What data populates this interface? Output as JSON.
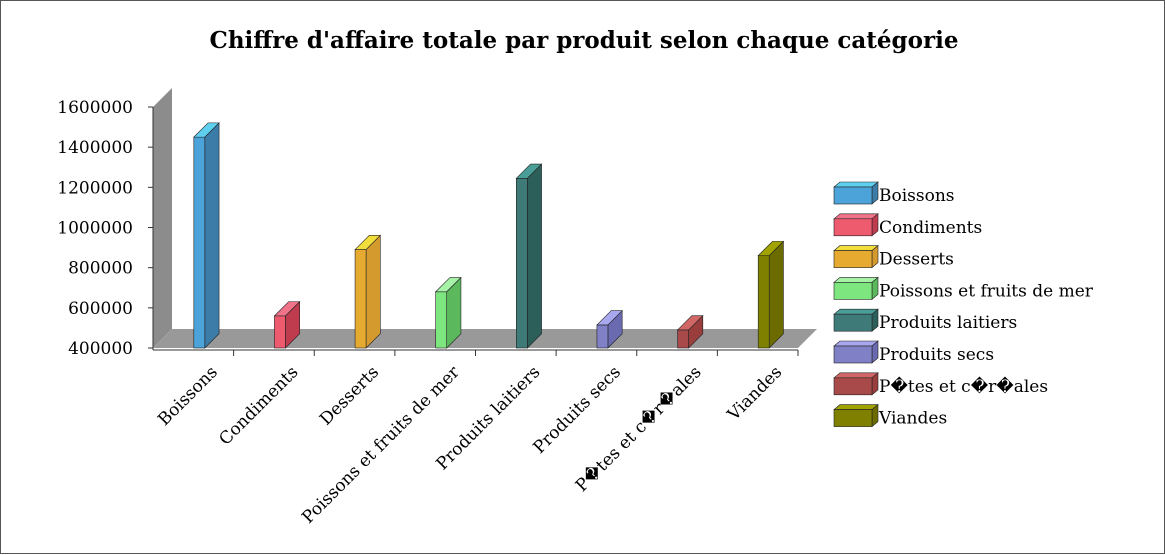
{
  "chart_data": {
    "type": "bar",
    "title": "Chiffre d'affaire totale par produit selon chaque catégorie",
    "xlabel": "",
    "ylabel": "",
    "ylim": [
      400000,
      1600000
    ],
    "yticks": [
      "1600000",
      "1400000",
      "1200000",
      "1000000",
      "800000",
      "600000",
      "400000"
    ],
    "categories": [
      "Boissons",
      "Condiments",
      "Desserts",
      "Poissons et fruits de mer",
      "Produits laitiers",
      "Produits secs",
      "P�tes et c�r�ales",
      "Viandes"
    ],
    "values": [
      1450000,
      560000,
      890000,
      680000,
      1245000,
      515000,
      490000,
      860000
    ],
    "legend_placement": "right",
    "three_d": true,
    "colors": [
      "#3B7CA8",
      "#BF3B4E",
      "#D49A2E",
      "#5CB85C",
      "#2C5F5A",
      "#6A6AB0",
      "#9A3D3D",
      "#6B6B00"
    ],
    "legend_colors": [
      "#4BA3D9",
      "#EE5A6E",
      "#E6AA30",
      "#7EE67E",
      "#3D7A78",
      "#7F80C6",
      "#A94A4A",
      "#808000"
    ],
    "top_colors": [
      "#5FCFF0",
      "#F0738A",
      "#F2DE3A",
      "#A6F2A6",
      "#4A9E98",
      "#A8A8EE",
      "#D06666",
      "#A2A200"
    ]
  }
}
